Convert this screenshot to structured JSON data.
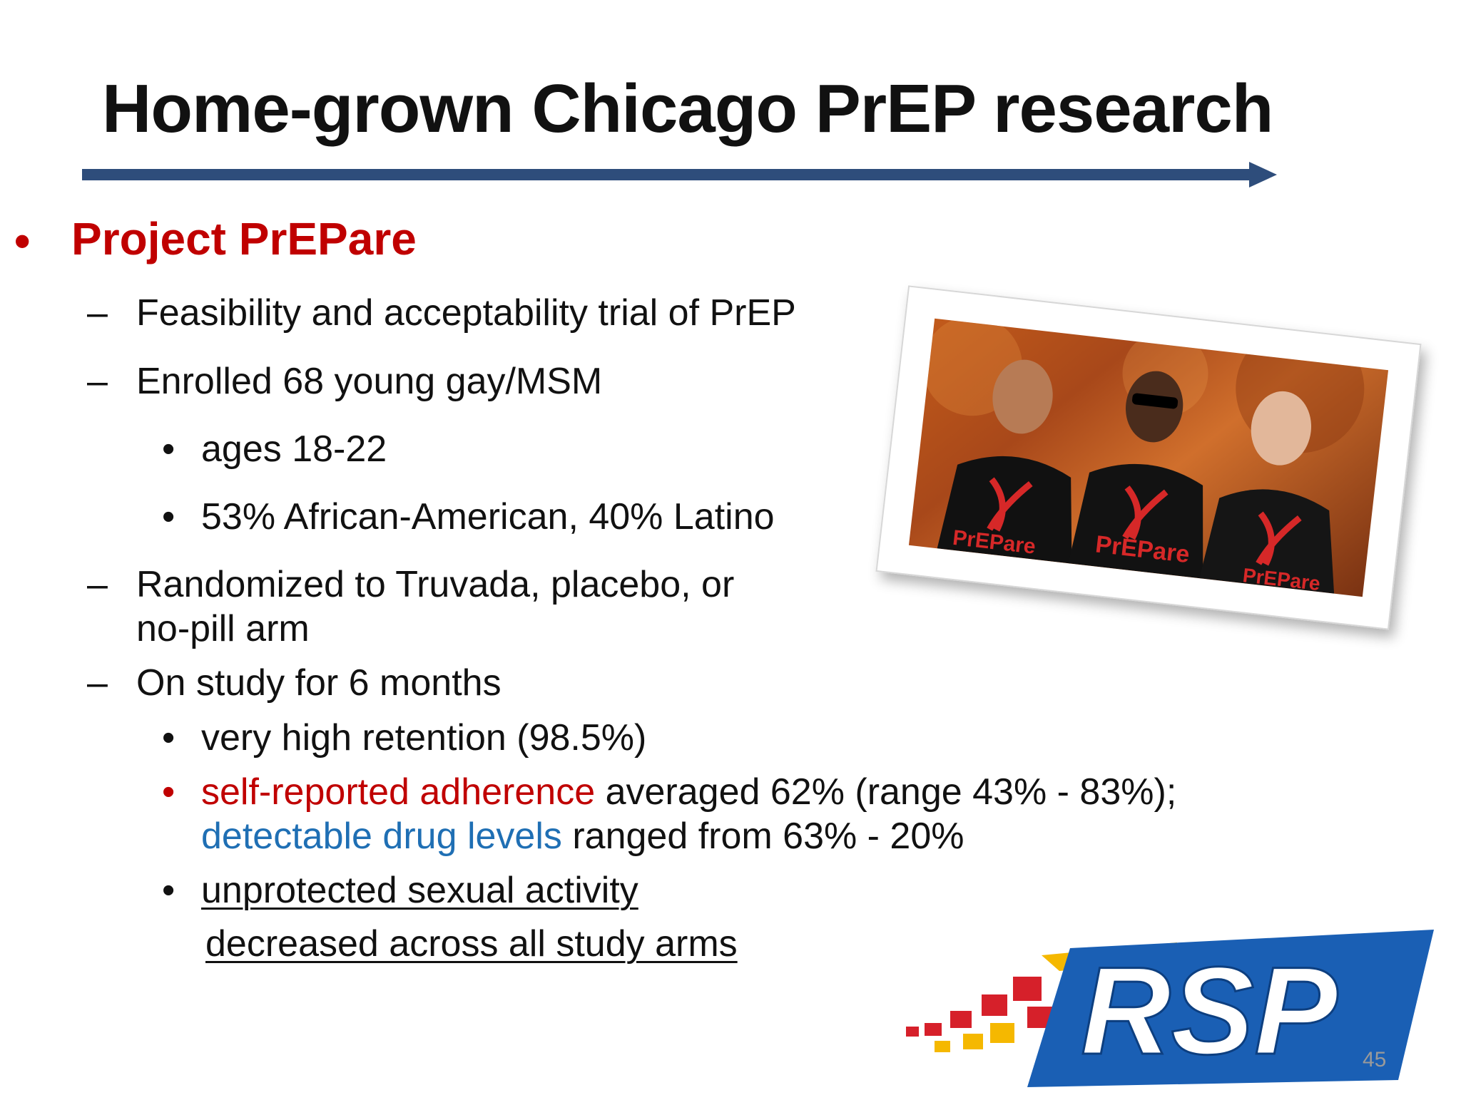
{
  "slide": {
    "title": "Home-grown Chicago PrEP research",
    "bullets": {
      "level1_marker": "•",
      "level2_marker": "–",
      "level3_marker": "•",
      "project": "Project PrEPare",
      "feasibility": "Feasibility and acceptability trial of PrEP",
      "enrolled": "Enrolled 68 young gay/MSM",
      "ages": "ages 18-22",
      "demographics": "53% African-American, 40% Latino",
      "randomized_line1": "Randomized to Truvada, placebo, or",
      "randomized_line2": "no-pill arm",
      "on_study": "On study for 6 months",
      "retention": "very high retention (98.5%)",
      "adherence_highlight": "self-reported adherence",
      "adherence_rest": " averaged 62% (range 43% - 83%);",
      "drug_levels_highlight": "detectable drug levels",
      "drug_levels_rest": " ranged from 63% - 20%",
      "unprotected_line1": "unprotected sexual activity",
      "unprotected_line2": "decreased across all study arms"
    },
    "photo": {
      "shirt_text": "PrEPare"
    },
    "logo": {
      "text": "RSP"
    },
    "page_number": "45"
  },
  "colors": {
    "title_text": "#111111",
    "accent_red": "#c00000",
    "accent_blue": "#1f6fb4",
    "rule": "#2e4d7b",
    "logo_blue": "#1a5fb4",
    "logo_yellow": "#f5b800",
    "logo_red": "#d6202a"
  }
}
